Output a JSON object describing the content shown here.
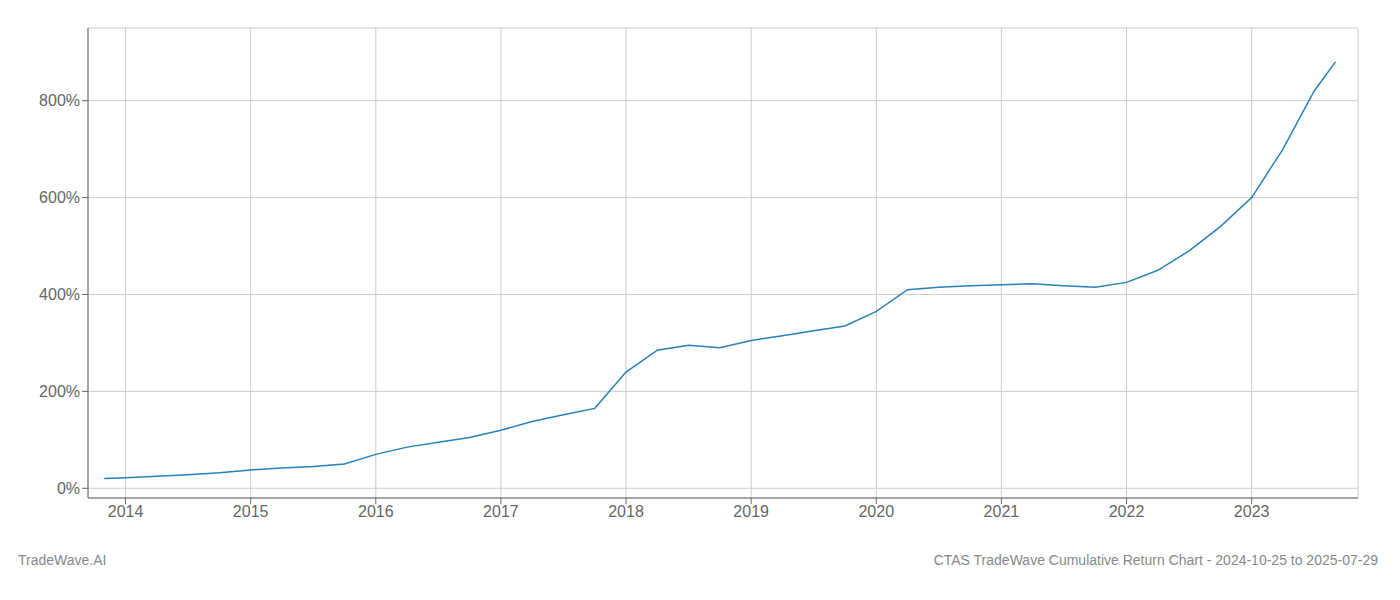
{
  "chart_data": {
    "type": "line",
    "title": "CTAS TradeWave Cumulative Return Chart - 2024-10-25 to 2025-07-29",
    "annotations": [
      "TradeWave.AI"
    ],
    "x": [
      2013.83,
      2014.0,
      2014.25,
      2014.5,
      2014.75,
      2015.0,
      2015.25,
      2015.5,
      2015.75,
      2016.0,
      2016.25,
      2016.5,
      2016.75,
      2017.0,
      2017.25,
      2017.5,
      2017.75,
      2018.0,
      2018.25,
      2018.5,
      2018.75,
      2019.0,
      2019.25,
      2019.5,
      2019.75,
      2020.0,
      2020.25,
      2020.5,
      2020.75,
      2021.0,
      2021.25,
      2021.5,
      2021.75,
      2022.0,
      2022.25,
      2022.5,
      2022.75,
      2023.0,
      2023.25,
      2023.5,
      2023.67
    ],
    "values": [
      20,
      22,
      25,
      28,
      32,
      38,
      42,
      45,
      50,
      70,
      85,
      95,
      105,
      120,
      138,
      152,
      165,
      240,
      285,
      295,
      290,
      305,
      315,
      325,
      335,
      365,
      410,
      415,
      418,
      420,
      422,
      418,
      415,
      425,
      450,
      490,
      540,
      600,
      700,
      820,
      880
    ],
    "color": "#2980b9",
    "xlim": [
      2013.7,
      2023.85
    ],
    "xticks": [
      2014,
      2015,
      2016,
      2017,
      2018,
      2019,
      2020,
      2021,
      2022,
      2023
    ],
    "ylim": [
      -20,
      950
    ],
    "yticks": [
      {
        "value": 0,
        "label": "0%"
      },
      {
        "value": 200,
        "label": "200%"
      },
      {
        "value": 400,
        "label": "400%"
      },
      {
        "value": 600,
        "label": "600%"
      },
      {
        "value": 800,
        "label": "800%"
      }
    ],
    "grid": true
  }
}
